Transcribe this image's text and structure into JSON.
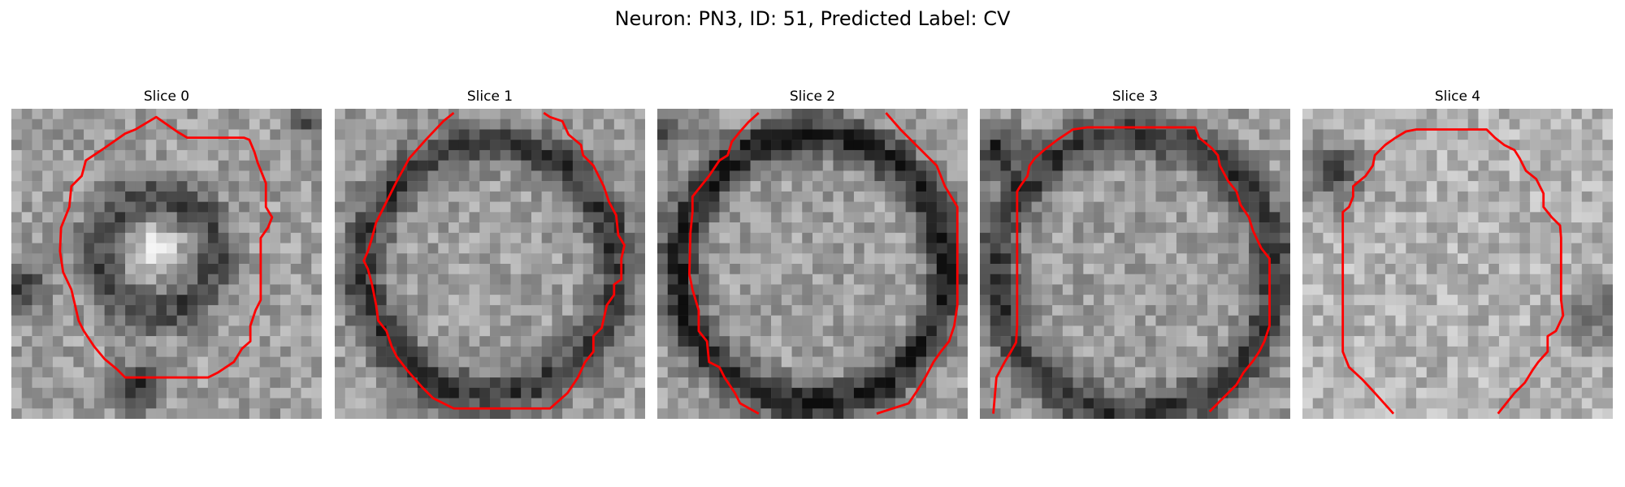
{
  "figure": {
    "title": "Neuron: PN3, ID: 51, Predicted Label: CV"
  },
  "panels": [
    {
      "title": "Slice 0"
    },
    {
      "title": "Slice 1"
    },
    {
      "title": "Slice 2"
    },
    {
      "title": "Slice 3"
    },
    {
      "title": "Slice 4"
    }
  ],
  "colors": {
    "contour": "#ff0000",
    "background": "#ffffff"
  }
}
